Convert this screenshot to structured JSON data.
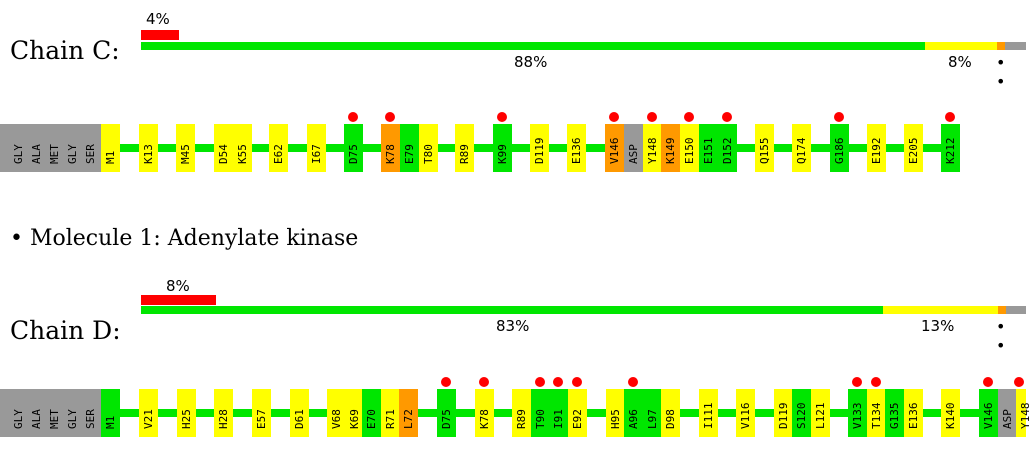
{
  "colors": {
    "green": "#00e600",
    "yellow": "#ffff00",
    "orange": "#ff9900",
    "red": "#ff0000",
    "gray": "#999999"
  },
  "molecule_title": "• Molecule 1: Adenylate kinase",
  "chains": [
    {
      "label": "Chain C:",
      "pct_top": "4%",
      "pct_mid": "88%",
      "pct_end": "8%",
      "dots": "• •",
      "quality": {
        "red": 4,
        "green": 88,
        "yellow": 8
      },
      "lead_labels": [
        "GLY",
        "ALA",
        "MET",
        "GLY",
        "SER"
      ],
      "residues": [
        {
          "label": "M1",
          "color": "yellow",
          "dot": false
        },
        {
          "label": "K13",
          "color": "yellow",
          "dot": false
        },
        {
          "label": "M45",
          "color": "yellow",
          "dot": false
        },
        {
          "label": "D54",
          "color": "yellow",
          "dot": false
        },
        {
          "label": "K55",
          "color": "yellow",
          "dot": false
        },
        {
          "label": "E62",
          "color": "yellow",
          "dot": false
        },
        {
          "label": "I67",
          "color": "yellow",
          "dot": false
        },
        {
          "label": "D75",
          "color": "green",
          "dot": true
        },
        {
          "label": "K78",
          "color": "orange",
          "dot": true
        },
        {
          "label": "E79",
          "color": "green",
          "dot": false
        },
        {
          "label": "T80",
          "color": "yellow",
          "dot": false
        },
        {
          "label": "R89",
          "color": "yellow",
          "dot": false
        },
        {
          "label": "K99",
          "color": "green",
          "dot": true
        },
        {
          "label": "D119",
          "color": "yellow",
          "dot": false
        },
        {
          "label": "E136",
          "color": "yellow",
          "dot": false
        },
        {
          "label": "V146",
          "color": "orange",
          "dot": true
        },
        {
          "label": "ASP",
          "color": "gray",
          "dot": false
        },
        {
          "label": "Y148",
          "color": "yellow",
          "dot": true
        },
        {
          "label": "K149",
          "color": "orange",
          "dot": false
        },
        {
          "label": "E150",
          "color": "yellow",
          "dot": true
        },
        {
          "label": "E151",
          "color": "green",
          "dot": false
        },
        {
          "label": "D152",
          "color": "green",
          "dot": true
        },
        {
          "label": "Q155",
          "color": "yellow",
          "dot": false
        },
        {
          "label": "Q174",
          "color": "yellow",
          "dot": false
        },
        {
          "label": "G186",
          "color": "green",
          "dot": true
        },
        {
          "label": "E192",
          "color": "yellow",
          "dot": false
        },
        {
          "label": "E205",
          "color": "yellow",
          "dot": false
        },
        {
          "label": "K212",
          "color": "green",
          "dot": true
        }
      ]
    },
    {
      "label": "Chain D:",
      "pct_top": "8%",
      "pct_mid": "83%",
      "pct_end": "13%",
      "dots": "• •",
      "quality": {
        "red": 8,
        "green": 83,
        "yellow": 13
      },
      "lead_labels": [
        "GLY",
        "ALA",
        "MET",
        "GLY",
        "SER"
      ],
      "residues": [
        {
          "label": "M1",
          "color": "green",
          "dot": false
        },
        {
          "label": "V21",
          "color": "yellow",
          "dot": false
        },
        {
          "label": "H25",
          "color": "yellow",
          "dot": false
        },
        {
          "label": "H28",
          "color": "yellow",
          "dot": false
        },
        {
          "label": "E57",
          "color": "yellow",
          "dot": false
        },
        {
          "label": "D61",
          "color": "yellow",
          "dot": false
        },
        {
          "label": "V68",
          "color": "yellow",
          "dot": false
        },
        {
          "label": "K69",
          "color": "yellow",
          "dot": false
        },
        {
          "label": "E70",
          "color": "green",
          "dot": false
        },
        {
          "label": "R71",
          "color": "yellow",
          "dot": false
        },
        {
          "label": "L72",
          "color": "orange",
          "dot": false
        },
        {
          "label": "D75",
          "color": "green",
          "dot": true
        },
        {
          "label": "K78",
          "color": "yellow",
          "dot": true
        },
        {
          "label": "R89",
          "color": "yellow",
          "dot": false
        },
        {
          "label": "T90",
          "color": "green",
          "dot": true
        },
        {
          "label": "I91",
          "color": "green",
          "dot": true
        },
        {
          "label": "E92",
          "color": "yellow",
          "dot": true
        },
        {
          "label": "H95",
          "color": "yellow",
          "dot": false
        },
        {
          "label": "A96",
          "color": "green",
          "dot": true
        },
        {
          "label": "L97",
          "color": "green",
          "dot": false
        },
        {
          "label": "D98",
          "color": "yellow",
          "dot": false
        },
        {
          "label": "I111",
          "color": "yellow",
          "dot": false
        },
        {
          "label": "V116",
          "color": "yellow",
          "dot": false
        },
        {
          "label": "D119",
          "color": "yellow",
          "dot": false
        },
        {
          "label": "S120",
          "color": "green",
          "dot": false
        },
        {
          "label": "L121",
          "color": "yellow",
          "dot": false
        },
        {
          "label": "V133",
          "color": "green",
          "dot": true
        },
        {
          "label": "T134",
          "color": "yellow",
          "dot": true
        },
        {
          "label": "G135",
          "color": "green",
          "dot": false
        },
        {
          "label": "E136",
          "color": "yellow",
          "dot": false
        },
        {
          "label": "K140",
          "color": "yellow",
          "dot": false
        },
        {
          "label": "V146",
          "color": "green",
          "dot": true
        },
        {
          "label": "ASP",
          "color": "gray",
          "dot": false
        },
        {
          "label": "Y148",
          "color": "yellow",
          "dot": true
        }
      ]
    }
  ]
}
